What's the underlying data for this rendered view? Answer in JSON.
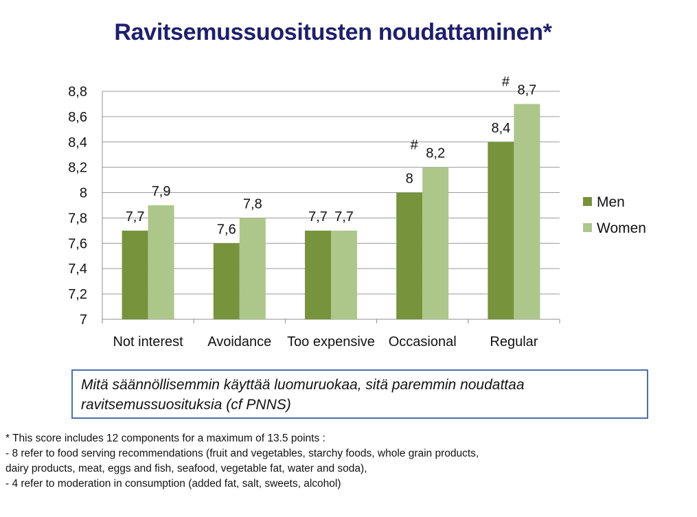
{
  "title": "Ravitsemussuositusten noudattaminen*",
  "chart_data": {
    "type": "bar",
    "categories": [
      "Not interest",
      "Avoidance",
      "Too expensive",
      "Occasional",
      "Regular"
    ],
    "series": [
      {
        "name": "Men",
        "values": [
          7.7,
          7.6,
          7.7,
          8.0,
          8.4
        ],
        "color": "#77933c"
      },
      {
        "name": "Women",
        "values": [
          7.9,
          7.8,
          7.7,
          8.2,
          8.7
        ],
        "color": "#adc68a"
      }
    ],
    "data_labels": [
      [
        "7,7",
        "7,6",
        "7,7",
        "8",
        "8,4"
      ],
      [
        "7,9",
        "7,8",
        "7,7",
        "8,2",
        "8,7"
      ]
    ],
    "annotations": [
      {
        "category": "Occasional",
        "text": "#"
      },
      {
        "category": "Regular",
        "text": "#"
      }
    ],
    "ylim": [
      7,
      8.8
    ],
    "yticks": [
      7,
      7.2,
      7.4,
      7.6,
      7.8,
      8,
      8.2,
      8.4,
      8.6,
      8.8
    ],
    "ytick_labels": [
      "7",
      "7,2",
      "7,4",
      "7,6",
      "7,8",
      "8",
      "8,2",
      "8,4",
      "8,6",
      "8,8"
    ],
    "grid": true,
    "legend_position": "right"
  },
  "callout": {
    "text": "Mitä säännöllisemmin käyttää luomuruokaa, sitä paremmin noudattaa ravitsemussuosituksia  (cf PNNS)"
  },
  "footnote": {
    "lines": [
      "* This score includes 12 components for a maximum of 13.5 points :",
      "-   8 refer to food serving recommendations (fruit and vegetables, starchy foods, whole grain products,",
      "dairy products,  meat, eggs and fish, seafood, vegetable fat, water and soda),",
      "- 4 refer to moderation in consumption (added fat, salt, sweets, alcohol)"
    ]
  }
}
